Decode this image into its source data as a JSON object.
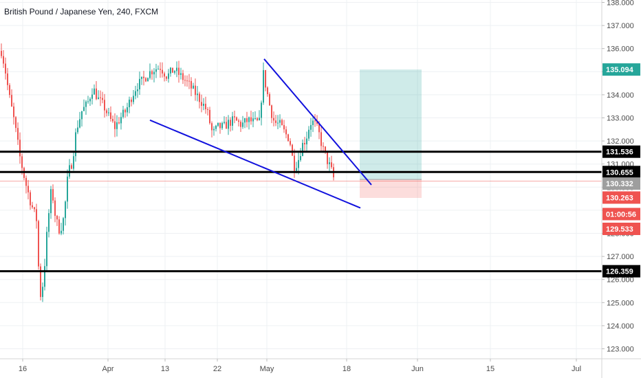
{
  "chart_data": {
    "type": "candlestick",
    "title": "British Pound / Japanese Yen, 240, FXCM",
    "ylim": [
      122.9,
      138.15
    ],
    "y_ticks": [
      "138.000",
      "137.000",
      "136.000",
      "135.000",
      "134.000",
      "133.000",
      "132.000",
      "131.000",
      "130.000",
      "129.000",
      "128.000",
      "127.000",
      "126.000",
      "125.000",
      "124.000",
      "123.000"
    ],
    "x_ticks": [
      "16",
      "Apr",
      "13",
      "22",
      "May",
      "18",
      "Jun",
      "15",
      "Jul"
    ],
    "grid": true,
    "horizontal_lines": [
      131.536,
      130.655,
      126.359
    ],
    "trendlines": [
      {
        "from": [
          "Apr 9",
          132.9
        ],
        "to": [
          "May 21",
          129.1
        ]
      },
      {
        "from": [
          "Apr 30",
          135.55
        ],
        "to": [
          "May 20",
          130.1
        ]
      }
    ],
    "position": {
      "entry": 130.332,
      "target": 135.094,
      "stop": 129.533
    },
    "price_tags": [
      {
        "value": "135.094",
        "color": "#26a69a"
      },
      {
        "value": "131.536",
        "color": "#000000"
      },
      {
        "value": "130.655",
        "color": "#000000"
      },
      {
        "value": "130.332",
        "color": "#9e9e9e"
      },
      {
        "value": "130.263",
        "color": "#ef5350"
      },
      {
        "value": "01:00:56",
        "color": "#ef5350"
      },
      {
        "value": "129.533",
        "color": "#ef5350"
      },
      {
        "value": "126.359",
        "color": "#000000"
      }
    ],
    "colors": {
      "up": "#26a69a",
      "down": "#ef5350",
      "trendline": "#1111dd"
    }
  }
}
